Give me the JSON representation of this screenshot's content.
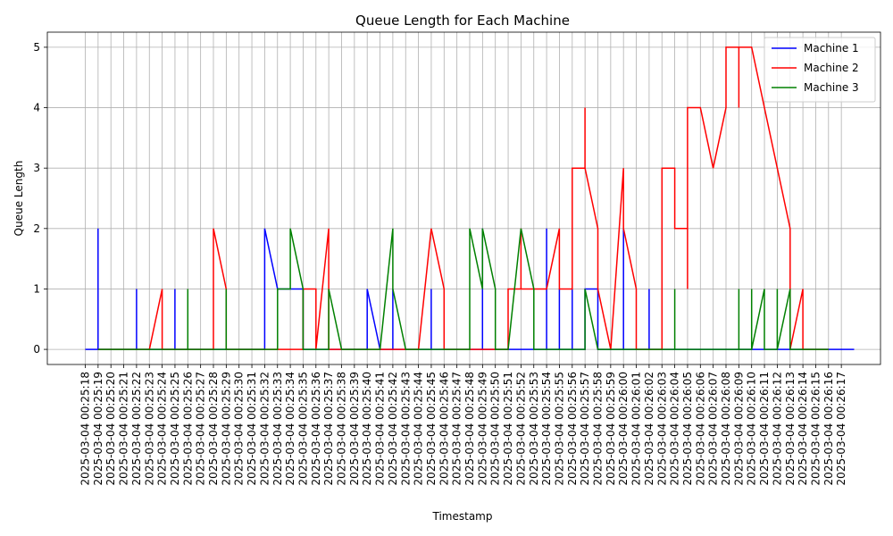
{
  "chart_data": {
    "type": "line",
    "title": "Queue Length for Each Machine",
    "xlabel": "Timestamp",
    "ylabel": "Queue Length",
    "ylim": [
      -0.25,
      5.25
    ],
    "yticks": [
      0,
      1,
      2,
      3,
      4,
      5
    ],
    "grid": true,
    "legend_position": "top-right",
    "x_ticks": [
      "2025-03-04 00:25:18",
      "2025-03-04 00:25:19",
      "2025-03-04 00:25:20",
      "2025-03-04 00:25:21",
      "2025-03-04 00:25:22",
      "2025-03-04 00:25:23",
      "2025-03-04 00:25:24",
      "2025-03-04 00:25:25",
      "2025-03-04 00:25:26",
      "2025-03-04 00:25:27",
      "2025-03-04 00:25:28",
      "2025-03-04 00:25:29",
      "2025-03-04 00:25:30",
      "2025-03-04 00:25:31",
      "2025-03-04 00:25:32",
      "2025-03-04 00:25:33",
      "2025-03-04 00:25:34",
      "2025-03-04 00:25:35",
      "2025-03-04 00:25:36",
      "2025-03-04 00:25:37",
      "2025-03-04 00:25:38",
      "2025-03-04 00:25:39",
      "2025-03-04 00:25:40",
      "2025-03-04 00:25:41",
      "2025-03-04 00:25:42",
      "2025-03-04 00:25:43",
      "2025-03-04 00:25:44",
      "2025-03-04 00:25:45",
      "2025-03-04 00:25:46",
      "2025-03-04 00:25:47",
      "2025-03-04 00:25:48",
      "2025-03-04 00:25:49",
      "2025-03-04 00:25:50",
      "2025-03-04 00:25:51",
      "2025-03-04 00:25:52",
      "2025-03-04 00:25:53",
      "2025-03-04 00:25:54",
      "2025-03-04 00:25:55",
      "2025-03-04 00:25:56",
      "2025-03-04 00:25:57",
      "2025-03-04 00:25:58",
      "2025-03-04 00:25:59",
      "2025-03-04 00:26:00",
      "2025-03-04 00:26:01",
      "2025-03-04 00:26:02",
      "2025-03-04 00:26:03",
      "2025-03-04 00:26:04",
      "2025-03-04 00:26:05",
      "2025-03-04 00:26:06",
      "2025-03-04 00:26:07",
      "2025-03-04 00:26:08",
      "2025-03-04 00:26:09",
      "2025-03-04 00:26:10",
      "2025-03-04 00:26:11",
      "2025-03-04 00:26:12",
      "2025-03-04 00:26:13",
      "2025-03-04 00:26:14",
      "2025-03-04 00:26:15",
      "2025-03-04 00:26:16",
      "2025-03-04 00:26:17"
    ],
    "series": [
      {
        "name": "Machine 1",
        "color": "#0000ff",
        "points": [
          [
            0,
            0
          ],
          [
            1,
            0
          ],
          [
            1,
            2
          ],
          [
            1,
            0
          ],
          [
            4,
            0
          ],
          [
            4,
            1
          ],
          [
            4,
            0
          ],
          [
            7,
            0
          ],
          [
            7,
            1
          ],
          [
            7,
            0
          ],
          [
            10,
            0
          ],
          [
            11,
            0
          ],
          [
            14,
            0
          ],
          [
            14,
            2
          ],
          [
            15,
            1
          ],
          [
            16,
            1
          ],
          [
            17,
            1
          ],
          [
            17,
            0
          ],
          [
            22,
            0
          ],
          [
            22,
            1
          ],
          [
            23,
            0
          ],
          [
            24,
            0
          ],
          [
            24,
            1
          ],
          [
            24,
            0
          ],
          [
            27,
            0
          ],
          [
            27,
            1
          ],
          [
            27,
            0
          ],
          [
            31,
            0
          ],
          [
            31,
            2
          ],
          [
            31,
            0
          ],
          [
            36,
            0
          ],
          [
            36,
            2
          ],
          [
            36,
            0
          ],
          [
            37,
            0
          ],
          [
            37,
            1
          ],
          [
            37,
            0
          ],
          [
            38,
            0
          ],
          [
            38,
            1
          ],
          [
            38,
            0
          ],
          [
            39,
            0
          ],
          [
            39,
            1
          ],
          [
            40,
            1
          ],
          [
            40,
            0
          ],
          [
            42,
            0
          ],
          [
            42,
            2
          ],
          [
            42,
            0
          ],
          [
            44,
            0
          ],
          [
            44,
            1
          ],
          [
            44,
            0
          ],
          [
            57,
            0
          ],
          [
            59,
            0
          ],
          [
            60,
            0
          ]
        ]
      },
      {
        "name": "Machine 2",
        "color": "#ff0000",
        "points": [
          [
            1,
            0
          ],
          [
            5,
            0
          ],
          [
            6,
            1
          ],
          [
            6,
            0
          ],
          [
            7,
            0
          ],
          [
            10,
            0
          ],
          [
            10,
            2
          ],
          [
            11,
            1
          ],
          [
            11,
            0
          ],
          [
            15,
            0
          ],
          [
            17,
            0
          ],
          [
            17,
            1
          ],
          [
            18,
            1
          ],
          [
            18,
            0
          ],
          [
            19,
            2
          ],
          [
            19,
            0
          ],
          [
            21,
            0
          ],
          [
            24,
            0
          ],
          [
            26,
            0
          ],
          [
            27,
            2
          ],
          [
            28,
            1
          ],
          [
            28,
            0
          ],
          [
            30,
            0
          ],
          [
            32,
            0
          ],
          [
            33,
            0
          ],
          [
            33,
            1
          ],
          [
            34,
            1
          ],
          [
            34,
            2
          ],
          [
            34,
            1
          ],
          [
            35,
            1
          ],
          [
            36,
            1
          ],
          [
            37,
            2
          ],
          [
            37,
            1
          ],
          [
            38,
            1
          ],
          [
            38,
            3
          ],
          [
            39,
            3
          ],
          [
            39,
            4
          ],
          [
            39,
            3
          ],
          [
            40,
            2
          ],
          [
            40,
            1
          ],
          [
            41,
            0
          ],
          [
            42,
            3
          ],
          [
            42,
            2
          ],
          [
            43,
            1
          ],
          [
            43,
            0
          ],
          [
            44,
            0
          ],
          [
            45,
            0
          ],
          [
            45,
            3
          ],
          [
            46,
            3
          ],
          [
            46,
            2
          ],
          [
            47,
            2
          ],
          [
            47,
            1
          ],
          [
            47,
            4
          ],
          [
            48,
            4
          ],
          [
            49,
            3
          ],
          [
            50,
            4
          ],
          [
            50,
            5
          ],
          [
            51,
            5
          ],
          [
            51,
            4
          ],
          [
            51,
            5
          ],
          [
            52,
            5
          ],
          [
            53,
            4
          ],
          [
            55,
            2
          ],
          [
            55,
            0
          ],
          [
            56,
            1
          ],
          [
            56,
            0
          ],
          [
            58,
            0
          ]
        ]
      },
      {
        "name": "Machine 3",
        "color": "#008000",
        "points": [
          [
            1,
            0
          ],
          [
            8,
            0
          ],
          [
            8,
            1
          ],
          [
            8,
            0
          ],
          [
            11,
            0
          ],
          [
            11,
            1
          ],
          [
            11,
            0
          ],
          [
            15,
            0
          ],
          [
            15,
            1
          ],
          [
            16,
            1
          ],
          [
            16,
            2
          ],
          [
            17,
            1
          ],
          [
            17,
            0
          ],
          [
            19,
            0
          ],
          [
            19,
            1
          ],
          [
            20,
            0
          ],
          [
            23,
            0
          ],
          [
            24,
            2
          ],
          [
            24,
            1
          ],
          [
            25,
            0
          ],
          [
            30,
            0
          ],
          [
            30,
            2
          ],
          [
            31,
            1
          ],
          [
            31,
            2
          ],
          [
            32,
            1
          ],
          [
            32,
            0
          ],
          [
            33,
            0
          ],
          [
            34,
            2
          ],
          [
            35,
            1
          ],
          [
            35,
            0
          ],
          [
            39,
            0
          ],
          [
            39,
            1
          ],
          [
            40,
            0
          ],
          [
            46,
            0
          ],
          [
            46,
            1
          ],
          [
            46,
            0
          ],
          [
            51,
            0
          ],
          [
            51,
            1
          ],
          [
            51,
            0
          ],
          [
            52,
            0
          ],
          [
            52,
            1
          ],
          [
            52,
            0
          ],
          [
            53,
            1
          ],
          [
            53,
            0
          ],
          [
            54,
            0
          ],
          [
            54,
            1
          ],
          [
            54,
            0
          ],
          [
            55,
            1
          ],
          [
            55,
            0
          ],
          [
            56,
            0
          ],
          [
            58,
            0
          ]
        ]
      }
    ]
  }
}
